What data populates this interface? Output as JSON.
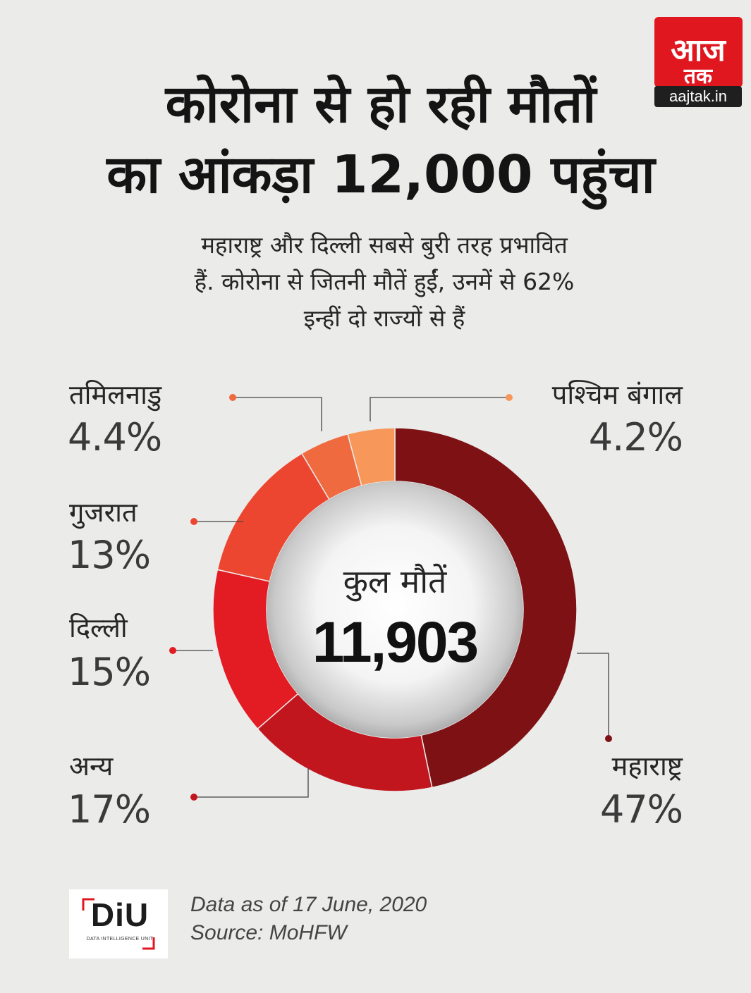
{
  "brand": {
    "logo_text": "आज तक",
    "site": "aajtak.in",
    "colors": {
      "logo_red": "#e0171f",
      "site_bg": "#1f1f1f"
    }
  },
  "title": {
    "line1": "कोरोना से हो रही मौतों",
    "line2": "का आंकड़ा 12,000 पहुंचा"
  },
  "subtitle": {
    "line1": "महाराष्ट्र और दिल्ली सबसे बुरी तरह प्रभावित",
    "line2": "हैं. कोरोना से जितनी मौतें हुईं, उनमें से 62%",
    "line3": "इन्हीं दो राज्यों से हैं"
  },
  "center": {
    "label": "कुल मौतें",
    "total": "11,903"
  },
  "labels": {
    "west_bengal": {
      "name": "पश्चिम बंगाल",
      "value": "4.2%"
    },
    "tamil_nadu": {
      "name": "तमिलनाडु",
      "value": "4.4%"
    },
    "gujarat": {
      "name": "गुजरात",
      "value": "13%"
    },
    "delhi": {
      "name": "दिल्ली",
      "value": "15%"
    },
    "others": {
      "name": "अन्य",
      "value": "17%"
    },
    "maharashtra": {
      "name": "महाराष्ट्र",
      "value": "47%"
    }
  },
  "chart_data": {
    "type": "pie",
    "subtype": "donut",
    "slices": [
      {
        "label": "महाराष्ट्र",
        "value": 47,
        "color": "#7e1114"
      },
      {
        "label": "अन्य",
        "value": 17,
        "color": "#c2161f"
      },
      {
        "label": "दिल्ली",
        "value": 15,
        "color": "#e31b23"
      },
      {
        "label": "गुजरात",
        "value": 13,
        "color": "#ed4630"
      },
      {
        "label": "तमिलनाडु",
        "value": 4.4,
        "color": "#f06a3f"
      },
      {
        "label": "पश्चिम बंगाल",
        "value": 4.2,
        "color": "#f7985a"
      }
    ],
    "start": "12 o'clock",
    "direction": "clockwise",
    "total_label": "कुल मौतें",
    "total": "11,903"
  },
  "footer": {
    "diu_logo": "DiU",
    "diu_sub": "DATA INTELLIGENCE UNIT",
    "date_note": "Data as of 17 June, 2020",
    "source": "Source: MoHFW"
  }
}
